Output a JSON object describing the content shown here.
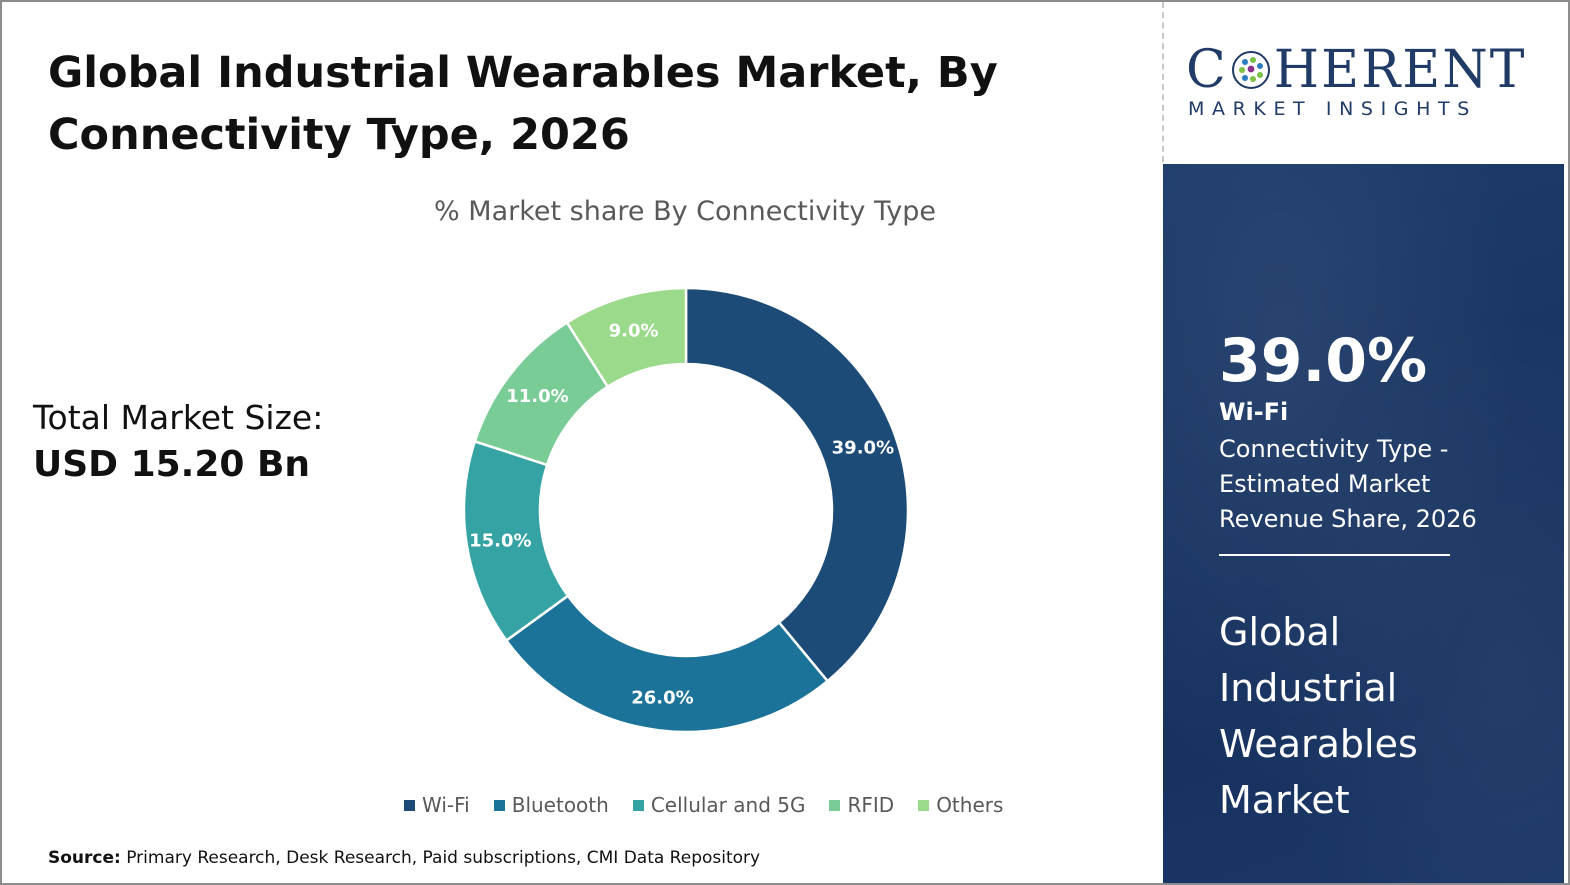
{
  "title_line1": "Global Industrial Wearables Market, By",
  "title_line2": "Connectivity Type, 2026",
  "total_market": {
    "label": "Total Market Size:",
    "value": "USD 15.20 Bn"
  },
  "source": {
    "label": "Source:",
    "text": " Primary Research, Desk Research, Paid subscriptions, CMI Data Repository"
  },
  "logo": {
    "main_before": "C",
    "main_after": "HERENT",
    "sub": "MARKET INSIGHTS",
    "color": "#1f3b66"
  },
  "side_panel": {
    "percent": "39.0%",
    "segment": "Wi-Fi",
    "description": "Connectivity Type - Estimated Market Revenue Share, 2026",
    "market_name": "Global Industrial Wearables Market",
    "background": "#1b3766"
  },
  "chart_data": {
    "type": "pie",
    "title": "% Market share By Connectivity Type",
    "donut": true,
    "legend_position": "bottom",
    "categories": [
      "Wi-Fi",
      "Bluetooth",
      "Cellular and 5G",
      "RFID",
      "Others"
    ],
    "values": [
      39.0,
      26.0,
      15.0,
      11.0,
      9.0
    ],
    "labels": [
      "39.0%",
      "26.0%",
      "15.0%",
      "11.0%",
      "9.0%"
    ],
    "colors": [
      "#1b4b76",
      "#1c7399",
      "#35a3a4",
      "#7acc96",
      "#9bda8a"
    ]
  }
}
